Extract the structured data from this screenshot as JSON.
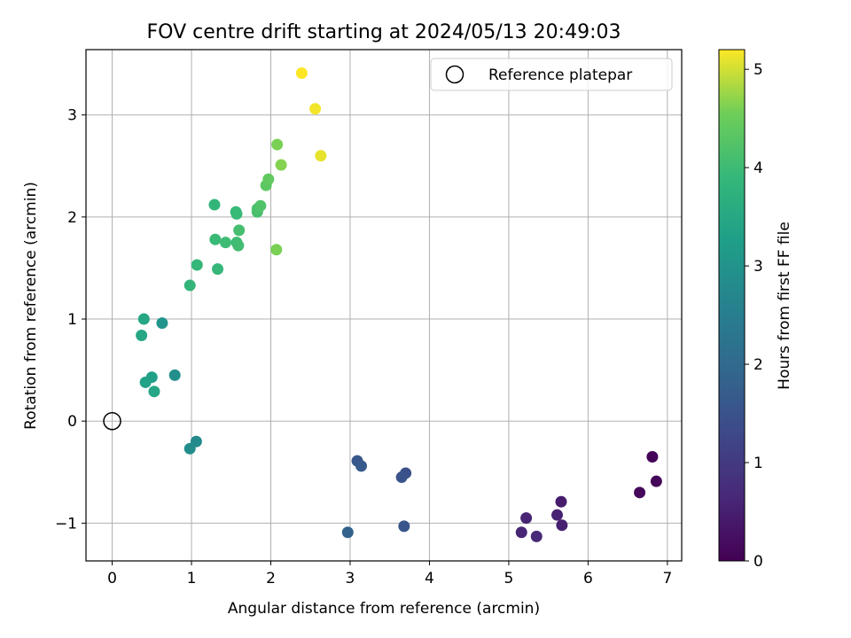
{
  "chart_data": {
    "type": "scatter",
    "title": "FOV centre drift starting at 2024/05/13 20:49:03",
    "xlabel": "Angular distance from reference (arcmin)",
    "ylabel": "Rotation from reference (arcmin)",
    "xlim": [
      -0.33,
      7.18
    ],
    "ylim": [
      -1.37,
      3.64
    ],
    "xticks": [
      0,
      1,
      2,
      3,
      4,
      5,
      6,
      7
    ],
    "yticks": [
      -1,
      0,
      1,
      2,
      3
    ],
    "grid": true,
    "legend": {
      "placement": "top-right",
      "entries": [
        "Reference platepar"
      ]
    },
    "reference_point": {
      "x": 0,
      "y": 0,
      "label": "Reference platepar"
    },
    "colorbar": {
      "label": "Hours from first FF file",
      "colormap": "viridis",
      "range": [
        0,
        5.2
      ],
      "ticks": [
        0,
        1,
        2,
        3,
        4,
        5
      ]
    },
    "points": [
      {
        "x": 6.81,
        "y": -0.35,
        "c": 0.05
      },
      {
        "x": 6.86,
        "y": -0.59,
        "c": 0.1
      },
      {
        "x": 6.65,
        "y": -0.7,
        "c": 0.12
      },
      {
        "x": 5.66,
        "y": -0.79,
        "c": 0.45
      },
      {
        "x": 5.67,
        "y": -1.02,
        "c": 0.5
      },
      {
        "x": 5.61,
        "y": -0.92,
        "c": 0.55
      },
      {
        "x": 5.22,
        "y": -0.95,
        "c": 0.6
      },
      {
        "x": 5.16,
        "y": -1.09,
        "c": 0.62
      },
      {
        "x": 5.35,
        "y": -1.13,
        "c": 0.68
      },
      {
        "x": 3.7,
        "y": -0.51,
        "c": 1.45
      },
      {
        "x": 3.65,
        "y": -0.55,
        "c": 1.5
      },
      {
        "x": 3.09,
        "y": -0.39,
        "c": 1.6
      },
      {
        "x": 3.14,
        "y": -0.44,
        "c": 1.65
      },
      {
        "x": 3.68,
        "y": -1.03,
        "c": 1.55
      },
      {
        "x": 2.97,
        "y": -1.09,
        "c": 1.85
      },
      {
        "x": 1.06,
        "y": -0.2,
        "c": 2.8
      },
      {
        "x": 0.98,
        "y": -0.27,
        "c": 2.85
      },
      {
        "x": 0.79,
        "y": 0.45,
        "c": 2.9
      },
      {
        "x": 0.63,
        "y": 0.96,
        "c": 3.05
      },
      {
        "x": 0.5,
        "y": 0.43,
        "c": 3.3
      },
      {
        "x": 0.42,
        "y": 0.38,
        "c": 3.35
      },
      {
        "x": 0.53,
        "y": 0.29,
        "c": 3.45
      },
      {
        "x": 0.4,
        "y": 1.0,
        "c": 3.45
      },
      {
        "x": 0.37,
        "y": 0.84,
        "c": 3.45
      },
      {
        "x": 0.98,
        "y": 1.33,
        "c": 3.85
      },
      {
        "x": 1.07,
        "y": 1.53,
        "c": 3.9
      },
      {
        "x": 1.33,
        "y": 1.49,
        "c": 3.9
      },
      {
        "x": 1.29,
        "y": 2.12,
        "c": 3.85
      },
      {
        "x": 1.3,
        "y": 1.78,
        "c": 3.95
      },
      {
        "x": 1.43,
        "y": 1.75,
        "c": 4.0
      },
      {
        "x": 1.56,
        "y": 2.05,
        "c": 3.95
      },
      {
        "x": 1.57,
        "y": 2.03,
        "c": 3.95
      },
      {
        "x": 1.57,
        "y": 1.75,
        "c": 4.0
      },
      {
        "x": 1.59,
        "y": 1.72,
        "c": 4.05
      },
      {
        "x": 1.6,
        "y": 1.87,
        "c": 4.1
      },
      {
        "x": 1.83,
        "y": 2.05,
        "c": 4.1
      },
      {
        "x": 1.83,
        "y": 2.08,
        "c": 4.15
      },
      {
        "x": 1.87,
        "y": 2.11,
        "c": 4.2
      },
      {
        "x": 1.94,
        "y": 2.31,
        "c": 4.35
      },
      {
        "x": 1.97,
        "y": 2.37,
        "c": 4.4
      },
      {
        "x": 2.07,
        "y": 1.68,
        "c": 4.6
      },
      {
        "x": 2.08,
        "y": 2.71,
        "c": 4.6
      },
      {
        "x": 2.13,
        "y": 2.51,
        "c": 4.65
      },
      {
        "x": 2.39,
        "y": 3.41,
        "c": 5.2
      },
      {
        "x": 2.56,
        "y": 3.06,
        "c": 5.15
      },
      {
        "x": 2.63,
        "y": 2.6,
        "c": 5.1
      }
    ]
  }
}
